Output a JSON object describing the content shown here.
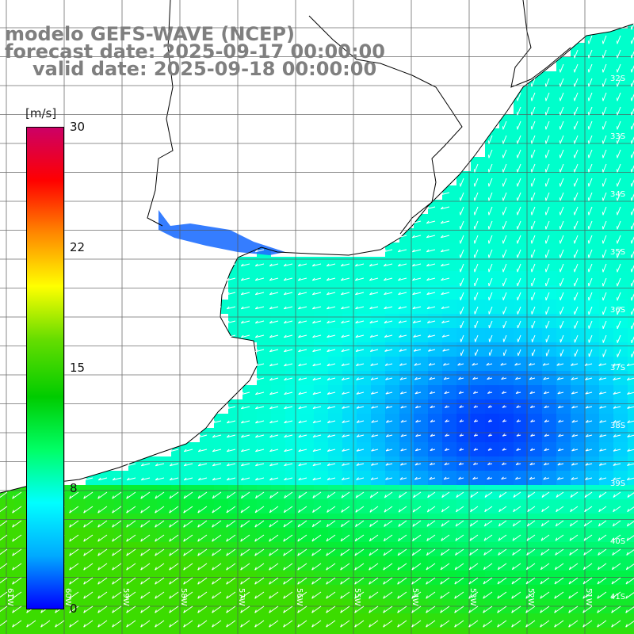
{
  "title": {
    "line1": "modelo GEFS-WAVE (NCEP)",
    "line2": "forecast date: 2025-09-17 00:00:00",
    "line3": "valid date: 2025-09-18 00:00:00"
  },
  "colorbar": {
    "unit": "[m/s]",
    "ticks": [
      "30",
      "22",
      "15",
      "8",
      "0"
    ],
    "tick_values": [
      30,
      22,
      15,
      8,
      0
    ],
    "range": [
      0,
      30
    ],
    "colors": [
      "#0000ff",
      "#00aaff",
      "#00ffff",
      "#00ff66",
      "#00cc00",
      "#66dd00",
      "#ffff00",
      "#ff8800",
      "#ff0000",
      "#cc0066"
    ]
  },
  "map": {
    "field": "wind speed and direction",
    "lat_labels": [
      "32S",
      "33S",
      "34S",
      "35S",
      "36S",
      "37S",
      "38S",
      "39S",
      "40S",
      "41S"
    ],
    "lon_labels": [
      "61W",
      "60W",
      "59W",
      "58W",
      "57W",
      "56W",
      "55W",
      "54W",
      "53W",
      "52W",
      "51W"
    ],
    "colors": {
      "land": "#ffffff",
      "grid": "#555555",
      "coast": "#000000",
      "arrow": "#ffffff"
    }
  }
}
